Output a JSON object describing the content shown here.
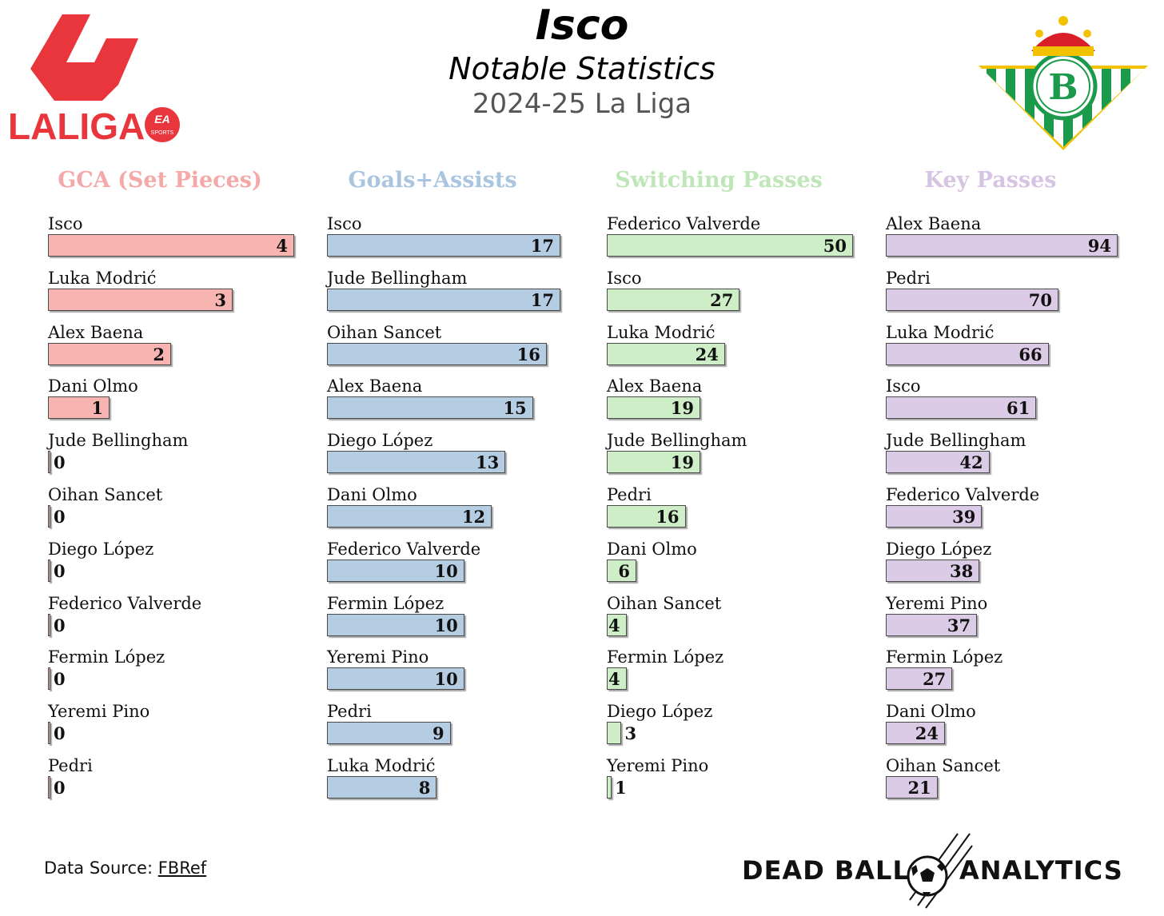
{
  "header": {
    "title": "Isco",
    "subtitle": "Notable Statistics",
    "season": "2024-25 La Liga"
  },
  "logos": {
    "left": {
      "name": "laliga-ea-sports-logo",
      "text": "LALIGA",
      "badge": "EA SPORTS",
      "color": "#e8363c"
    },
    "right": {
      "name": "real-betis-crest-logo",
      "color": "#1b9a4b",
      "accent": "#f2c200"
    }
  },
  "footer": {
    "source_label": "Data Source:",
    "source_link": "FBRef",
    "brand_left": "DEAD BALL",
    "brand_right": "ANALYTICS"
  },
  "chart_data": [
    {
      "type": "bar",
      "title": "GCA (Set Pieces)",
      "title_color": "#f4a8a8",
      "bar_color": "#f8b4b0",
      "categories": [
        "Isco",
        "Luka Modrić",
        "Alex Baena",
        "Dani Olmo",
        "Jude Bellingham",
        "Oihan Sancet",
        "Diego López",
        "Federico Valverde",
        "Fermin López",
        "Yeremi Pino",
        "Pedri"
      ],
      "values": [
        4,
        3,
        2,
        1,
        0,
        0,
        0,
        0,
        0,
        0,
        0
      ]
    },
    {
      "type": "bar",
      "title": "Goals+Assists",
      "title_color": "#a9c5e0",
      "bar_color": "#b5cde3",
      "categories": [
        "Isco",
        "Jude Bellingham",
        "Oihan Sancet",
        "Alex Baena",
        "Diego López",
        "Dani Olmo",
        "Federico Valverde",
        "Fermin López",
        "Yeremi Pino",
        "Pedri",
        "Luka Modrić"
      ],
      "values": [
        17,
        17,
        16,
        15,
        13,
        12,
        10,
        10,
        10,
        9,
        8
      ]
    },
    {
      "type": "bar",
      "title": "Switching Passes",
      "title_color": "#bfe6b8",
      "bar_color": "#cdeec6",
      "categories": [
        "Federico Valverde",
        "Isco",
        "Luka Modrić",
        "Alex Baena",
        "Jude Bellingham",
        "Pedri",
        "Dani Olmo",
        "Oihan Sancet",
        "Fermin López",
        "Diego López",
        "Yeremi Pino"
      ],
      "values": [
        50,
        27,
        24,
        19,
        19,
        16,
        6,
        4,
        4,
        3,
        1
      ]
    },
    {
      "type": "bar",
      "title": "Key Passes",
      "title_color": "#d7c3e2",
      "bar_color": "#dccbe6",
      "categories": [
        "Alex Baena",
        "Pedri",
        "Luka Modrić",
        "Isco",
        "Jude Bellingham",
        "Federico Valverde",
        "Diego López",
        "Yeremi Pino",
        "Fermin López",
        "Dani Olmo",
        "Oihan Sancet"
      ],
      "values": [
        94,
        70,
        66,
        61,
        42,
        39,
        38,
        37,
        27,
        24,
        21
      ]
    }
  ]
}
